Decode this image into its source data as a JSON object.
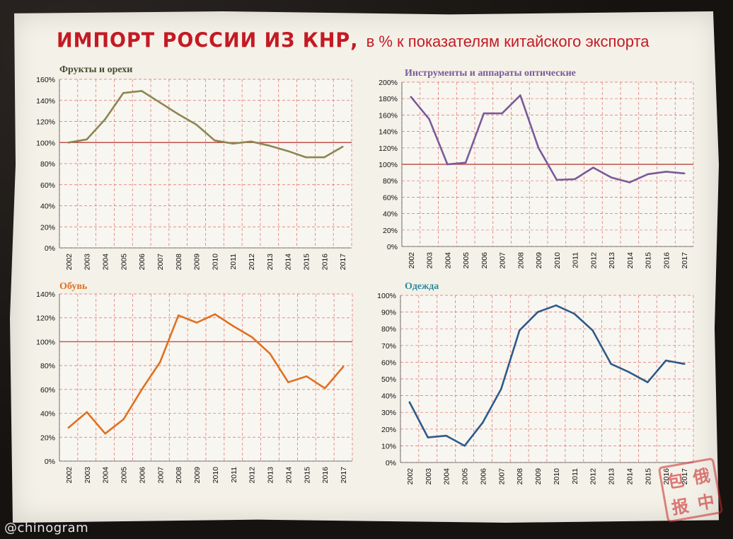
{
  "header": {
    "title": "ИМПОРТ РОССИИ ИЗ КНР,",
    "subtitle": "в % к показателям китайского экспорта"
  },
  "watermark": "@chinogram",
  "stamp": [
    "中",
    "俄",
    "报",
    "包"
  ],
  "colors": {
    "title": "#c41a24",
    "reference_line": "#c0504d",
    "grid": "#e06a6a"
  },
  "chart_data": [
    {
      "id": "fruits",
      "type": "line",
      "title": "Фрукты и орехи",
      "title_color": "#4a4a30",
      "line_color": "#8c8652",
      "x": [
        "2002",
        "2003",
        "2004",
        "2005",
        "2006",
        "2007",
        "2008",
        "2009",
        "2010",
        "2011",
        "2012",
        "2013",
        "2014",
        "2015",
        "2016",
        "2017"
      ],
      "values": [
        100,
        103,
        122,
        147,
        149,
        138,
        127,
        117,
        102,
        99,
        101,
        97,
        92,
        86,
        86,
        96
      ],
      "ylim": [
        0,
        160
      ],
      "yticks": [
        "0%",
        "20%",
        "40%",
        "60%",
        "80%",
        "100%",
        "120%",
        "140%",
        "160%"
      ],
      "reference": 100,
      "grid": true
    },
    {
      "id": "optics",
      "type": "line",
      "title": "Инструменты и аппараты оптические",
      "title_color": "#7a5a9a",
      "line_color": "#7a5a9a",
      "x": [
        "2002",
        "2003",
        "2004",
        "2005",
        "2006",
        "2007",
        "2008",
        "2009",
        "2010",
        "2011",
        "2012",
        "2013",
        "2014",
        "2015",
        "2016",
        "2017"
      ],
      "values": [
        182,
        155,
        100,
        102,
        162,
        162,
        184,
        120,
        81,
        82,
        96,
        84,
        78,
        88,
        91,
        89
      ],
      "ylim": [
        0,
        200
      ],
      "yticks": [
        "0%",
        "20%",
        "40%",
        "60%",
        "80%",
        "100%",
        "120%",
        "140%",
        "160%",
        "180%",
        "200%"
      ],
      "reference": 100,
      "grid": true
    },
    {
      "id": "footwear",
      "type": "line",
      "title": "Обувь",
      "title_color": "#e07020",
      "line_color": "#e07020",
      "x": [
        "2002",
        "2003",
        "2004",
        "2005",
        "2006",
        "2007",
        "2008",
        "2009",
        "2010",
        "2011",
        "2012",
        "2013",
        "2014",
        "2015",
        "2016",
        "2017"
      ],
      "values": [
        28,
        41,
        23,
        35,
        60,
        83,
        122,
        116,
        123,
        113,
        104,
        90,
        66,
        71,
        61,
        79
      ],
      "ylim": [
        0,
        140
      ],
      "yticks": [
        "0%",
        "20%",
        "40%",
        "60%",
        "80%",
        "100%",
        "120%",
        "140%"
      ],
      "reference": 100,
      "grid": true
    },
    {
      "id": "clothing",
      "type": "line",
      "title": "Одежда",
      "title_color": "#2e8aa0",
      "line_color": "#2f5a8a",
      "x": [
        "2002",
        "2003",
        "2004",
        "2005",
        "2006",
        "2007",
        "2008",
        "2009",
        "2010",
        "2011",
        "2012",
        "2013",
        "2014",
        "2015",
        "2016",
        "2017"
      ],
      "values": [
        36,
        15,
        16,
        10,
        24,
        44,
        79,
        90,
        94,
        89,
        79,
        59,
        54,
        48,
        61,
        59
      ],
      "ylim": [
        0,
        100
      ],
      "yticks": [
        "0%",
        "10%",
        "20%",
        "30%",
        "40%",
        "50%",
        "60%",
        "70%",
        "80%",
        "90%",
        "100%"
      ],
      "reference": null,
      "grid": true
    }
  ]
}
